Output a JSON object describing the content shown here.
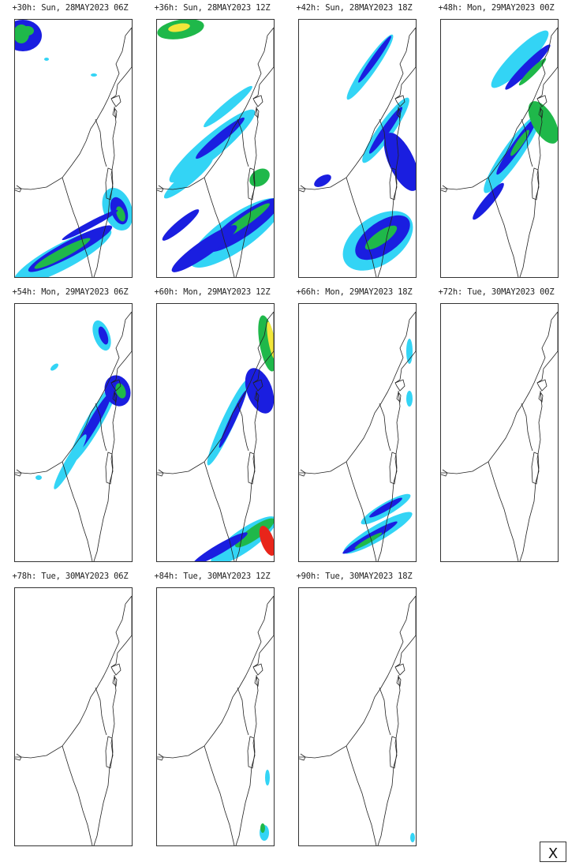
{
  "panels": [
    {
      "label": "+30h: Sun, 28MAY2023 06Z",
      "lead": "+30h",
      "day": "Sun",
      "date": "28MAY2023",
      "hour": "06Z"
    },
    {
      "label": "+36h: Sun, 28MAY2023 12Z",
      "lead": "+36h",
      "day": "Sun",
      "date": "28MAY2023",
      "hour": "12Z"
    },
    {
      "label": "+42h: Sun, 28MAY2023 18Z",
      "lead": "+42h",
      "day": "Sun",
      "date": "28MAY2023",
      "hour": "18Z"
    },
    {
      "label": "+48h: Mon, 29MAY2023 00Z",
      "lead": "+48h",
      "day": "Mon",
      "date": "29MAY2023",
      "hour": "00Z"
    },
    {
      "label": "+54h: Mon, 29MAY2023 06Z",
      "lead": "+54h",
      "day": "Mon",
      "date": "29MAY2023",
      "hour": "06Z"
    },
    {
      "label": "+60h: Mon, 29MAY2023 12Z",
      "lead": "+60h",
      "day": "Mon",
      "date": "29MAY2023",
      "hour": "12Z"
    },
    {
      "label": "+66h: Mon, 29MAY2023 18Z",
      "lead": "+66h",
      "day": "Mon",
      "date": "29MAY2023",
      "hour": "18Z"
    },
    {
      "label": "+72h: Tue, 30MAY2023 00Z",
      "lead": "+72h",
      "day": "Tue",
      "date": "30MAY2023",
      "hour": "00Z"
    },
    {
      "label": "+78h: Tue, 30MAY2023 06Z",
      "lead": "+78h",
      "day": "Tue",
      "date": "30MAY2023",
      "hour": "06Z"
    },
    {
      "label": "+84h: Tue, 30MAY2023 12Z",
      "lead": "+84h",
      "day": "Tue",
      "date": "30MAY2023",
      "hour": "12Z"
    },
    {
      "label": "+90h: Tue, 30MAY2023 18Z",
      "lead": "+90h",
      "day": "Tue",
      "date": "30MAY2023",
      "hour": "18Z"
    }
  ],
  "close_label": "X",
  "colors": {
    "light": "#33d4f5",
    "moderate": "#1a1ee0",
    "heavy": "#1fb84a",
    "intense": "#f2e63a",
    "extreme": "#e8251a",
    "outline": "#222222"
  }
}
